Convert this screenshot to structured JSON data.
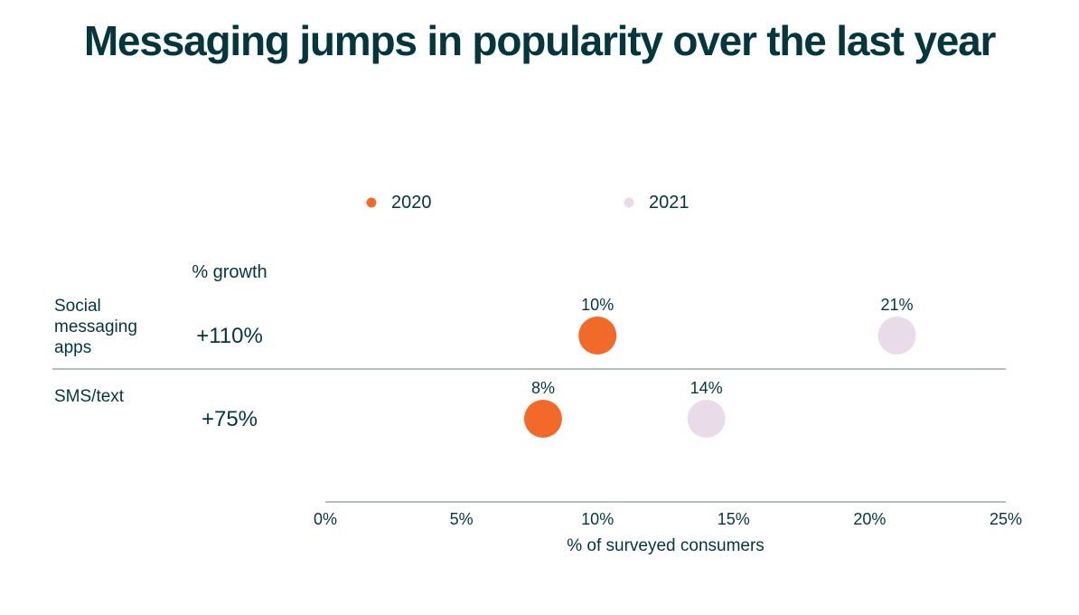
{
  "title": "Messaging jumps in popularity over the last year",
  "chart_data": {
    "type": "scatter",
    "title": "Messaging jumps in popularity over the last year",
    "xlabel": "% of surveyed consumers",
    "xlim": [
      0,
      25
    ],
    "x_ticks": [
      0,
      5,
      10,
      15,
      20,
      25
    ],
    "x_tick_labels": [
      "0%",
      "5%",
      "10%",
      "15%",
      "20%",
      "25%"
    ],
    "growth_header": "% growth",
    "legend": [
      {
        "name": "2020",
        "color": "#f26a2a"
      },
      {
        "name": "2021",
        "color": "#e9dbe9"
      }
    ],
    "categories": [
      {
        "label_lines": [
          "Social",
          "messaging",
          "apps"
        ],
        "growth": "+110%"
      },
      {
        "label_lines": [
          "SMS/text"
        ],
        "growth": "+75%"
      }
    ],
    "series": [
      {
        "name": "2020",
        "color": "#f26a2a",
        "values": [
          10,
          8
        ],
        "labels": [
          "10%",
          "8%"
        ]
      },
      {
        "name": "2021",
        "color": "#e9dbe9",
        "values": [
          21,
          14
        ],
        "labels": [
          "21%",
          "14%"
        ]
      }
    ]
  }
}
